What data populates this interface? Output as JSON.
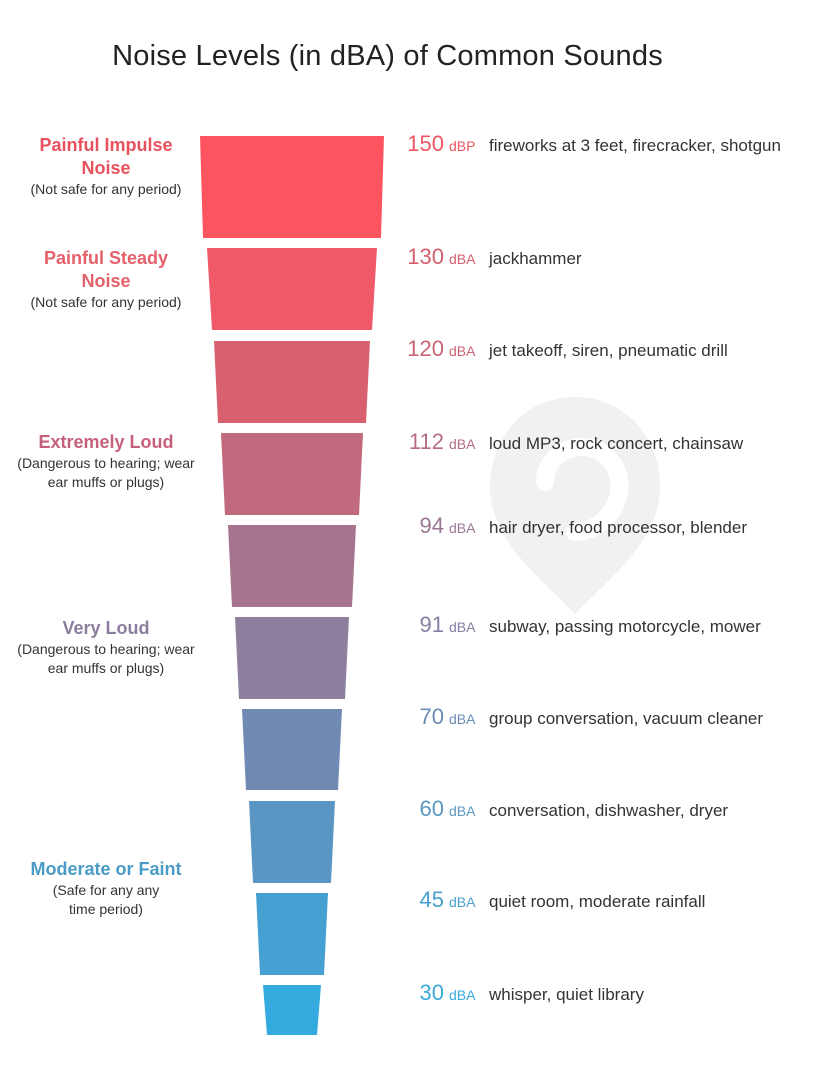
{
  "title": "Noise Levels (in dBA) of Common Sounds",
  "categories": [
    {
      "title": "Painful Impulse Noise",
      "note": "(Not safe for any period)",
      "color": "#e8525f"
    },
    {
      "title": "Painful Steady Noise",
      "note": "(Not safe for any period)",
      "color": "#e4606b"
    },
    {
      "title": "Extremely Loud",
      "note": "(Dangerous to hearing; wear ear muffs or plugs)",
      "color": "#c5617a"
    },
    {
      "title": "Very Loud",
      "note": "(Dangerous to hearing; wear ear muffs or plugs)",
      "color": "#8c7d9c"
    },
    {
      "title": "Moderate or Faint",
      "note": "(Safe for any any time period)",
      "color": "#4a9cc6"
    }
  ],
  "levels": [
    {
      "value": "150",
      "unit": "dBP",
      "description": "fireworks at 3 feet, firecracker, shotgun",
      "color": "#ee5562"
    },
    {
      "value": "130",
      "unit": "dBA",
      "description": "jackhammer",
      "color": "#d35f6d"
    },
    {
      "value": "120",
      "unit": "dBA",
      "description": "jet takeoff, siren, pneumatic drill",
      "color": "#c96475"
    },
    {
      "value": "112",
      "unit": "dBA",
      "description": "loud MP3, rock concert, chainsaw",
      "color": "#b56d83"
    },
    {
      "value": "94",
      "unit": "dBA",
      "description": "hair dryer, food processor, blender",
      "color": "#9a7894"
    },
    {
      "value": "91",
      "unit": "dBA",
      "description": "subway, passing motorcycle, mower",
      "color": "#8281a3"
    },
    {
      "value": "70",
      "unit": "dBA",
      "description": "group conversation, vacuum cleaner",
      "color": "#6a8cb4"
    },
    {
      "value": "60",
      "unit": "dBA",
      "description": "conversation, dishwasher, dryer",
      "color": "#5b98c2"
    },
    {
      "value": "45",
      "unit": "dBA",
      "description": "quiet room, moderate rainfall",
      "color": "#4aa1cf"
    },
    {
      "value": "30",
      "unit": "dBA",
      "description": "whisper, quiet library",
      "color": "#3aaadc"
    }
  ],
  "funnel": {
    "colors": [
      "#fe5460",
      "#ee5a68",
      "#d8606f",
      "#c1697d",
      "#a5748d",
      "#8d809f",
      "#718ab3",
      "#5a96c4",
      "#46a0d2",
      "#34aadf"
    ]
  },
  "icons": {
    "watermark": "location-pin-icon"
  }
}
